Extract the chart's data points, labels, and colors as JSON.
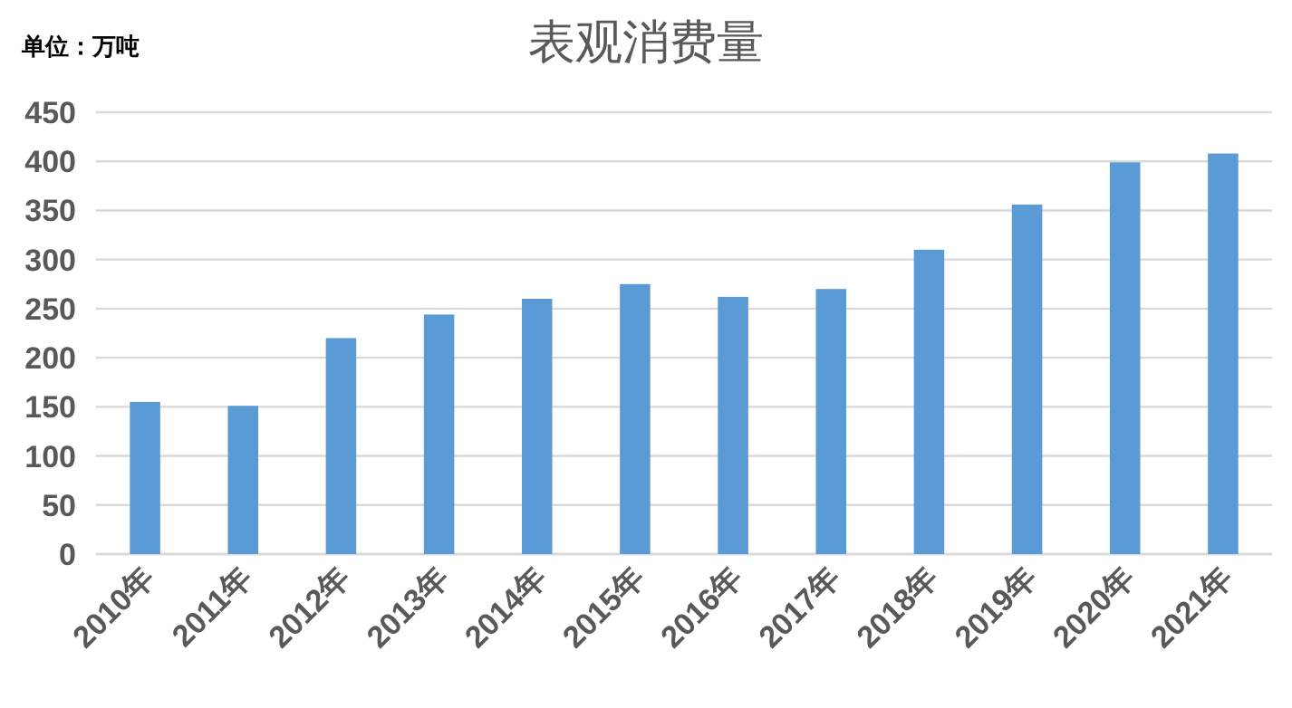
{
  "chart_data": {
    "type": "bar",
    "title": "表观消费量",
    "annotations": [
      "单位：万吨"
    ],
    "categories": [
      "2010年",
      "2011年",
      "2012年",
      "2013年",
      "2014年",
      "2015年",
      "2016年",
      "2017年",
      "2018年",
      "2019年",
      "2020年",
      "2021年"
    ],
    "values": [
      155,
      151,
      220,
      244,
      260,
      275,
      262,
      270,
      310,
      356,
      399,
      408
    ],
    "color": "#5b9bd5",
    "ylim": [
      0,
      450
    ],
    "yticks": [
      0,
      50,
      100,
      150,
      200,
      250,
      300,
      350,
      400,
      450
    ],
    "grid": "y"
  }
}
